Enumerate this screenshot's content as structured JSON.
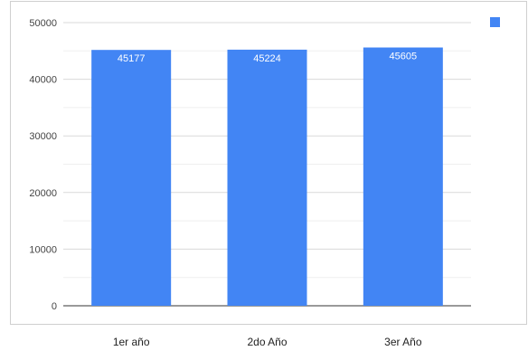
{
  "chart_data": {
    "type": "bar",
    "title": "",
    "xlabel": "",
    "ylabel": "",
    "categories": [
      "1er año",
      "2do Año",
      "3er Año"
    ],
    "series": [
      {
        "values": [
          45177,
          45224,
          45605
        ],
        "color": "#4285f4"
      }
    ],
    "data_labels": [
      "45177",
      "45224",
      "45605"
    ],
    "ylim": [
      0,
      50000
    ],
    "yticks": [
      0,
      10000,
      20000,
      30000,
      40000,
      50000
    ],
    "ytick_labels": [
      "0",
      "10000",
      "20000",
      "30000",
      "40000",
      "50000"
    ],
    "minor_gridlines": true,
    "grid": true,
    "legend": {
      "position": "top-right",
      "color": "#4285f4"
    }
  }
}
